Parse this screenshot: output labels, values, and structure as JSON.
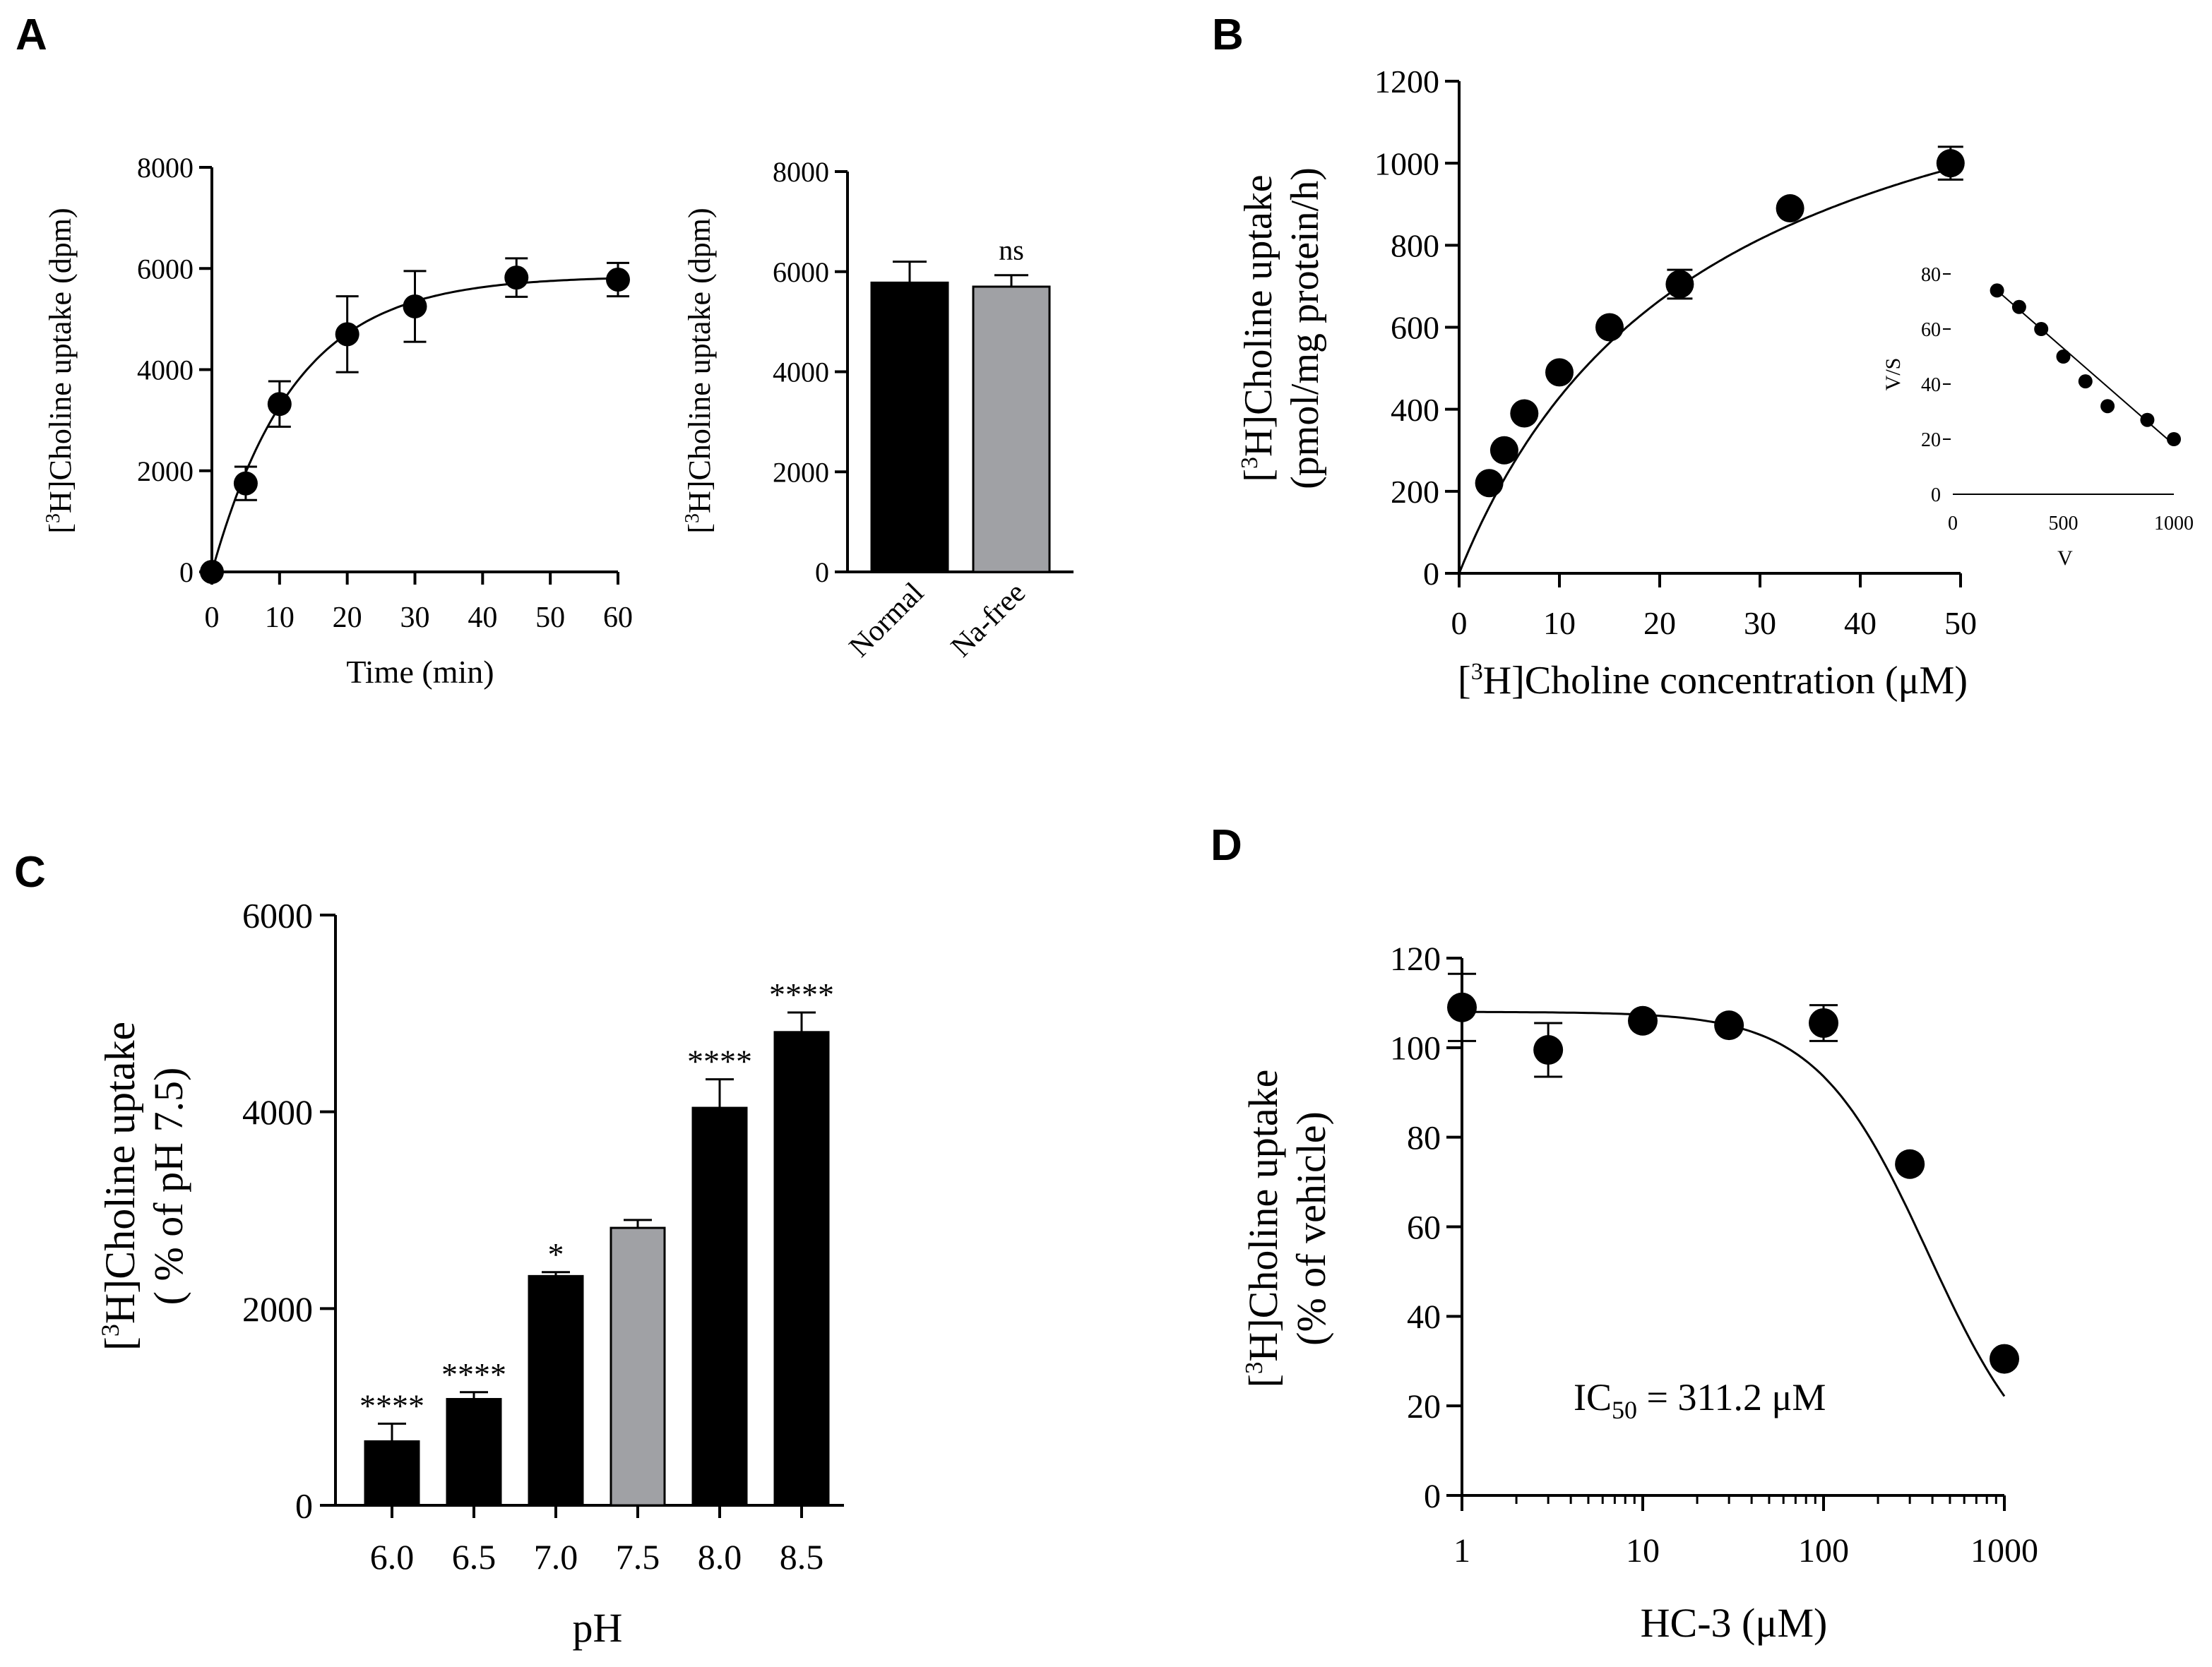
{
  "panels": {
    "A": "A",
    "B": "B",
    "C": "C",
    "D": "D"
  },
  "chart_data": [
    {
      "id": "A1",
      "panel": "A",
      "type": "scatter",
      "title": "",
      "xlabel": "Time (min)",
      "ylabel_sup": "3",
      "ylabel": "H]Choline uptake (dpm)",
      "xlim": [
        0,
        60
      ],
      "ylim": [
        0,
        8000
      ],
      "x_ticks": [
        "0",
        "10",
        "20",
        "30",
        "40",
        "50",
        "60"
      ],
      "y_ticks": [
        "0",
        "2000",
        "4000",
        "6000",
        "8000"
      ],
      "series": [
        {
          "name": "uptake",
          "x": [
            0,
            5,
            10,
            20,
            30,
            45,
            60
          ],
          "y": [
            0,
            1750,
            3320,
            4700,
            5250,
            5820,
            5780
          ],
          "err": [
            0,
            330,
            450,
            750,
            700,
            380,
            330
          ]
        }
      ],
      "fit": "one-phase association"
    },
    {
      "id": "A2",
      "panel": "A",
      "type": "bar",
      "ylabel_sup": "3",
      "ylabel": "H]Choline uptake (dpm)",
      "ylim": [
        0,
        8000
      ],
      "y_ticks": [
        "0",
        "2000",
        "4000",
        "6000",
        "8000"
      ],
      "categories": [
        "Normal",
        "Na-free"
      ],
      "values": [
        5780,
        5700
      ],
      "errors": [
        420,
        230
      ],
      "colors": [
        "#000000",
        "#a0a1a5"
      ],
      "annotations": [
        "",
        "ns"
      ]
    },
    {
      "id": "B",
      "panel": "B",
      "type": "scatter",
      "xlabel_sup": "3",
      "xlabel": "H]Choline concentration (μM)",
      "ylabel_sup": "3",
      "ylabel_line1": "H]Choline uptake",
      "ylabel_line2": "(pmol/mg protein/h)",
      "xlim": [
        0,
        50
      ],
      "ylim": [
        0,
        1200
      ],
      "x_ticks": [
        "0",
        "10",
        "20",
        "30",
        "40",
        "50"
      ],
      "y_ticks": [
        "0",
        "200",
        "400",
        "600",
        "800",
        "1000",
        "1200"
      ],
      "series": [
        {
          "name": "uptake",
          "x": [
            3,
            4.5,
            6.5,
            10,
            15,
            22,
            33,
            49
          ],
          "y": [
            220,
            300,
            390,
            490,
            600,
            705,
            890,
            1000
          ],
          "err": [
            0,
            0,
            0,
            0,
            0,
            35,
            0,
            40
          ]
        }
      ],
      "inset": {
        "type": "scatter",
        "xlabel": "V",
        "ylabel": "V/S",
        "xlim": [
          0,
          1000
        ],
        "ylim": [
          0,
          80
        ],
        "x_ticks": [
          "0",
          "500",
          "1000"
        ],
        "y_ticks": [
          "0",
          "20",
          "40",
          "60",
          "80"
        ],
        "x": [
          200,
          300,
          400,
          500,
          600,
          700,
          880,
          1000
        ],
        "y": [
          74,
          68,
          60,
          50,
          41,
          32,
          27,
          20
        ],
        "fit": [
          [
            200,
            74
          ],
          [
            1000,
            18
          ]
        ]
      }
    },
    {
      "id": "C",
      "panel": "C",
      "type": "bar",
      "xlabel": "pH",
      "ylabel_sup": "3",
      "ylabel_line1": "H]Choline uptake",
      "ylabel_line2": "( % of pH 7.5)",
      "ylim": [
        0,
        6000
      ],
      "y_ticks": [
        "0",
        "2000",
        "4000",
        "6000"
      ],
      "categories": [
        "6.0",
        "6.5",
        "7.0",
        "7.5",
        "8.0",
        "8.5"
      ],
      "values": [
        650,
        1080,
        2330,
        2820,
        4040,
        4810
      ],
      "errors": [
        180,
        70,
        40,
        80,
        290,
        200
      ],
      "colors": [
        "#000000",
        "#000000",
        "#000000",
        "#a0a1a5",
        "#000000",
        "#000000"
      ],
      "annotations": [
        "****",
        "****",
        "*",
        "",
        "****",
        "****"
      ]
    },
    {
      "id": "D",
      "panel": "D",
      "type": "scatter",
      "xlabel": "HC-3 (μM)",
      "ylabel_sup": "3",
      "ylabel_line1": "H]Choline uptake",
      "ylabel_line2": "(% of vehicle)",
      "xscale": "log",
      "xlim": [
        1,
        1000
      ],
      "ylim": [
        0,
        120
      ],
      "x_ticks": [
        "1",
        "10",
        "100",
        "1000"
      ],
      "y_ticks": [
        "0",
        "20",
        "40",
        "60",
        "80",
        "100",
        "120"
      ],
      "series": [
        {
          "name": "uptake",
          "x": [
            1,
            3,
            10,
            30,
            100,
            300,
            1000
          ],
          "y": [
            109,
            99.5,
            106,
            105,
            105.5,
            74,
            30.5
          ],
          "err": [
            7.5,
            6,
            0,
            0,
            4,
            0,
            0
          ]
        }
      ],
      "ic50_main": "IC",
      "ic50_sub": "50",
      "ic50_rest": " = 311.2 μM",
      "ic50_value": 311.2
    }
  ]
}
